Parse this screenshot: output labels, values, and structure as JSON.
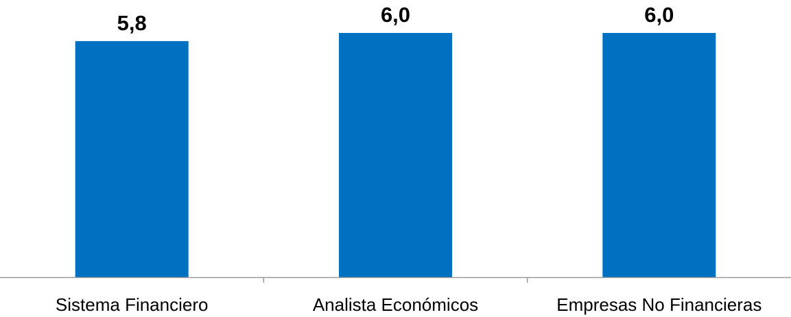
{
  "chart_data": {
    "type": "bar",
    "title": "",
    "xlabel": "",
    "ylabel": "",
    "categories": [
      "Sistema Financiero",
      "Analista Económicos",
      "Empresas No Financieras"
    ],
    "values": [
      5.8,
      6.0,
      6.0
    ],
    "value_labels": [
      "5,8",
      "6,0",
      "6,0"
    ],
    "ylim": [
      0,
      6.0
    ],
    "grid": false,
    "legend": "none",
    "colors": {
      "bar": "#0070C0",
      "axis": "#999999",
      "text": "#000000"
    }
  }
}
